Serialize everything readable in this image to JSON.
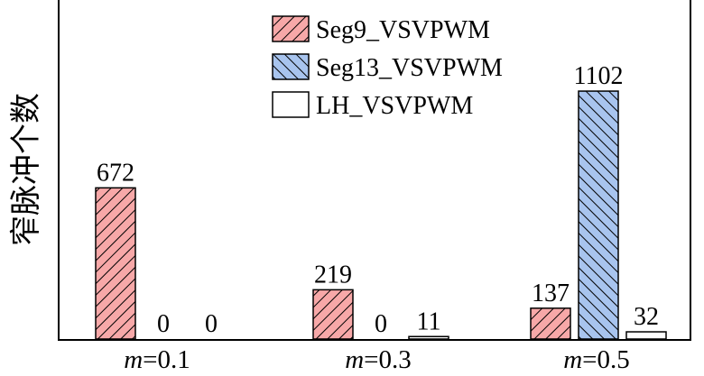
{
  "chart_data": {
    "type": "bar",
    "title": "",
    "xlabel": "",
    "ylabel": "窄脉冲个数",
    "categories": [
      "m=0.1",
      "m=0.3",
      "m=0.5"
    ],
    "category_labels": [
      {
        "var": "m",
        "rest": "=0.1"
      },
      {
        "var": "m",
        "rest": "=0.3"
      },
      {
        "var": "m",
        "rest": "=0.5"
      }
    ],
    "ylim": [
      0,
      1300
    ],
    "grid": false,
    "legend_position": "top-center",
    "series": [
      {
        "name": "Seg9_VSVPWM",
        "values": [
          672,
          219,
          137
        ],
        "color": "#f7a8a8",
        "pattern": "hatch-right"
      },
      {
        "name": "Seg13_VSVPWM",
        "values": [
          0,
          0,
          1102
        ],
        "color": "#a8c4ee",
        "pattern": "hatch-left"
      },
      {
        "name": "LH_VSVPWM",
        "values": [
          0,
          11,
          32
        ],
        "color": "#ffffff",
        "pattern": "none"
      }
    ]
  }
}
